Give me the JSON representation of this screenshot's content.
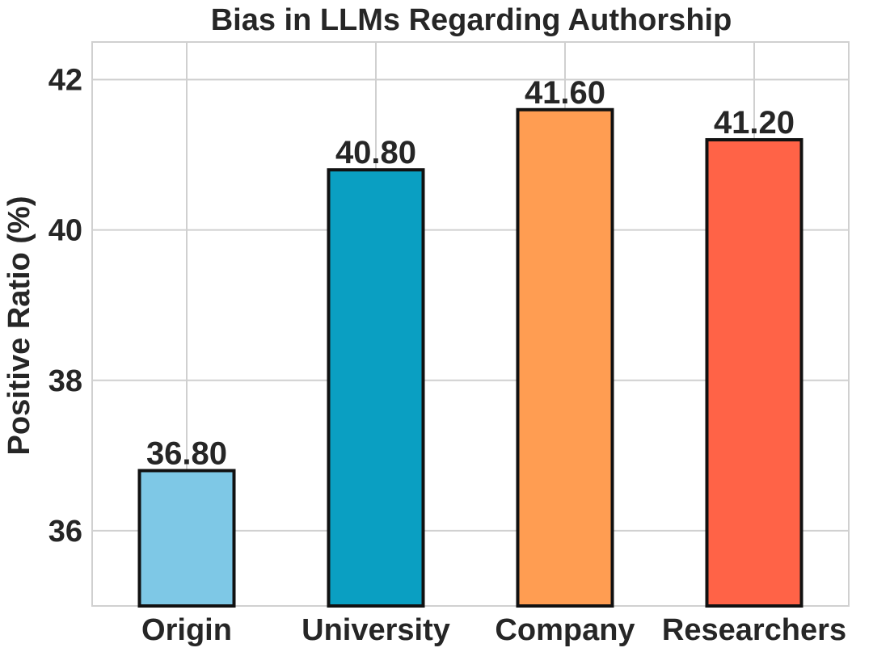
{
  "chart_data": {
    "type": "bar",
    "title": "Bias in LLMs Regarding Authorship",
    "xlabel": "",
    "ylabel": "Positive Ratio (%)",
    "categories": [
      "Origin",
      "University",
      "Company",
      "Researchers"
    ],
    "values": [
      36.8,
      40.8,
      41.6,
      41.2
    ],
    "value_labels": [
      "36.80",
      "40.80",
      "41.60",
      "41.20"
    ],
    "colors": [
      "#7ec8e6",
      "#0a9fc2",
      "#ff9d52",
      "#ff6347"
    ],
    "ylim": [
      35,
      42.5
    ],
    "yticks": [
      36,
      38,
      40,
      42
    ],
    "ytick_labels": [
      "36",
      "38",
      "40",
      "42"
    ],
    "grid": true,
    "legend": "none"
  }
}
